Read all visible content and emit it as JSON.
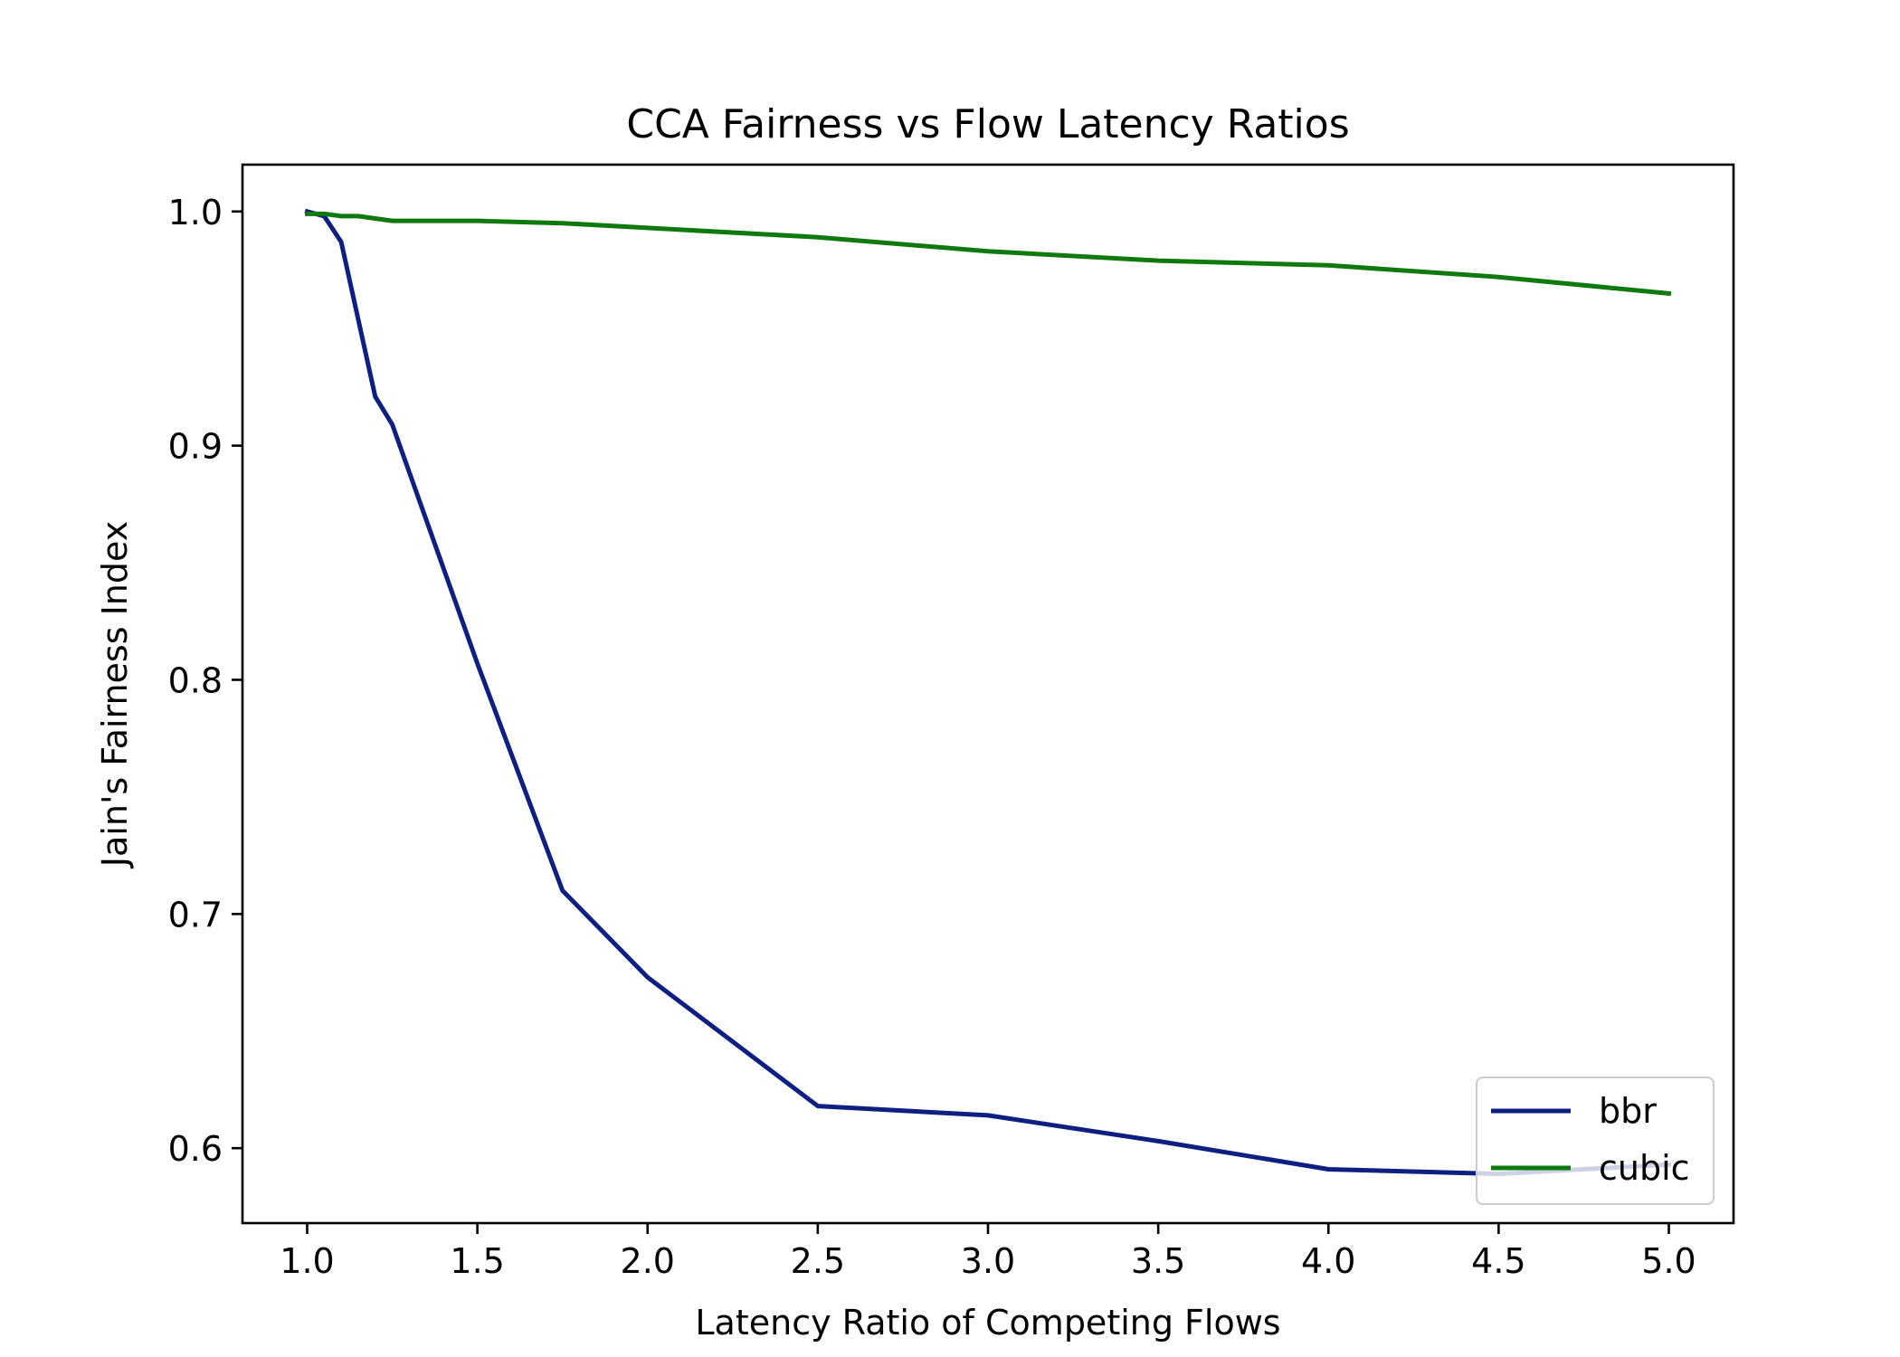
{
  "chart_data": {
    "type": "line",
    "title": "CCA Fairness vs Flow Latency Ratios",
    "xlabel": "Latency Ratio of Competing Flows",
    "ylabel": "Jain's Fairness Index",
    "xlim": [
      0.81,
      5.19
    ],
    "ylim": [
      0.568,
      1.02
    ],
    "xticks": [
      1.0,
      1.5,
      2.0,
      2.5,
      3.0,
      3.5,
      4.0,
      4.5,
      5.0
    ],
    "xtick_labels": [
      "1.0",
      "1.5",
      "2.0",
      "2.5",
      "3.0",
      "3.5",
      "4.0",
      "4.5",
      "5.0"
    ],
    "yticks": [
      0.6,
      0.7,
      0.8,
      0.9,
      1.0
    ],
    "ytick_labels": [
      "0.6",
      "0.7",
      "0.8",
      "0.9",
      "1.0"
    ],
    "grid": false,
    "legend_position": "lower-right",
    "series": [
      {
        "name": "bbr",
        "color": "#0d1f80",
        "x": [
          1.0,
          1.05,
          1.1,
          1.2,
          1.25,
          1.5,
          1.75,
          2.0,
          2.5,
          3.0,
          3.5,
          4.0,
          4.5,
          5.0
        ],
        "y": [
          1.0,
          0.998,
          0.987,
          0.921,
          0.909,
          0.807,
          0.71,
          0.673,
          0.618,
          0.614,
          0.603,
          0.591,
          0.589,
          0.593
        ]
      },
      {
        "name": "cubic",
        "color": "#0e7a0d",
        "x": [
          1.0,
          1.05,
          1.1,
          1.15,
          1.2,
          1.25,
          1.5,
          1.75,
          2.0,
          2.5,
          3.0,
          3.5,
          4.0,
          4.5,
          5.0
        ],
        "y": [
          0.999,
          0.999,
          0.998,
          0.998,
          0.997,
          0.996,
          0.996,
          0.995,
          0.993,
          0.989,
          0.983,
          0.979,
          0.977,
          0.972,
          0.965
        ]
      }
    ]
  }
}
